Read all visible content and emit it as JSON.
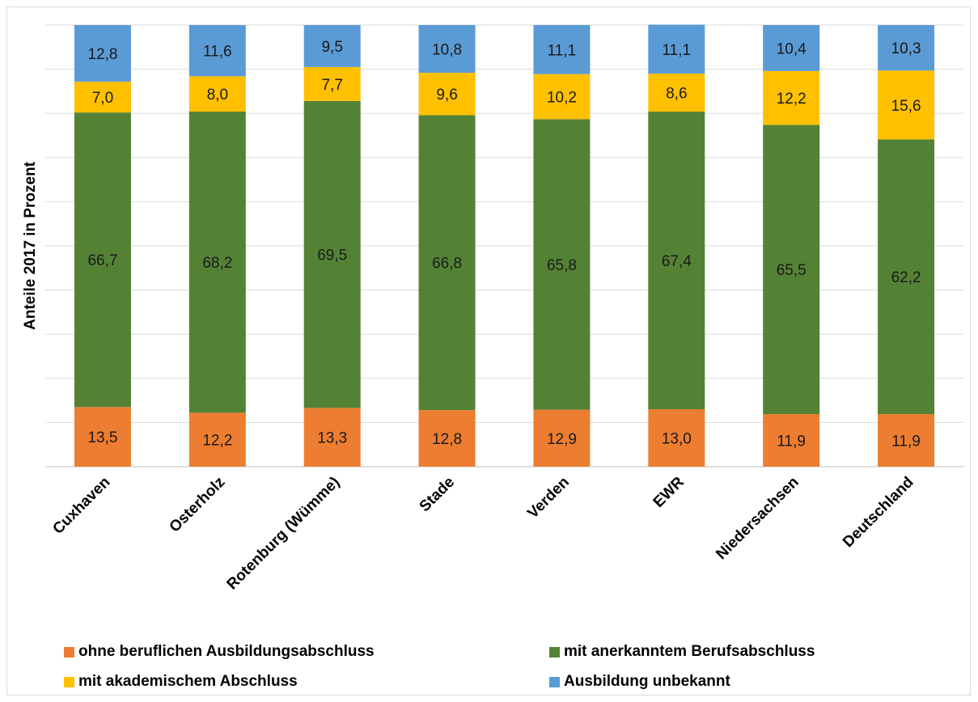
{
  "chart_data": {
    "type": "bar",
    "stacked": true,
    "title": "",
    "xlabel": "",
    "ylabel": "Anteile 2017 in Prozent",
    "ylim": [
      0,
      100
    ],
    "grid": true,
    "legend_position": "bottom",
    "categories": [
      "Cuxhaven",
      "Osterholz",
      "Rotenburg (Wümme)",
      "Stade",
      "Verden",
      "EWR",
      "Niedersachsen",
      "Deutschland"
    ],
    "series": [
      {
        "name": "ohne beruflichen Ausbildungsabschluss",
        "color": "#ed7d31",
        "values": [
          13.5,
          12.2,
          13.3,
          12.8,
          12.9,
          13.0,
          11.9,
          11.9
        ],
        "labels": [
          "13,5",
          "12,2",
          "13,3",
          "12,8",
          "12,9",
          "13,0",
          "11,9",
          "11,9"
        ]
      },
      {
        "name": "mit anerkanntem Berufsabschluss",
        "color": "#548235",
        "values": [
          66.7,
          68.2,
          69.5,
          66.8,
          65.8,
          67.4,
          65.5,
          62.2
        ],
        "labels": [
          "66,7",
          "68,2",
          "69,5",
          "66,8",
          "65,8",
          "67,4",
          "65,5",
          "62,2"
        ]
      },
      {
        "name": "mit akademischem Abschluss",
        "color": "#ffc000",
        "values": [
          7.0,
          8.0,
          7.7,
          9.6,
          10.2,
          8.6,
          12.2,
          15.6
        ],
        "labels": [
          "7,0",
          "8,0",
          "7,7",
          "9,6",
          "10,2",
          "8,6",
          "12,2",
          "15,6"
        ]
      },
      {
        "name": "Ausbildung unbekannt",
        "color": "#5b9bd5",
        "values": [
          12.8,
          11.6,
          9.5,
          10.8,
          11.1,
          11.1,
          10.4,
          10.3
        ],
        "labels": [
          "12,8",
          "11,6",
          "9,5",
          "10,8",
          "11,1",
          "11,1",
          "10,4",
          "10,3"
        ]
      }
    ]
  },
  "legend": [
    {
      "label": "ohne beruflichen Ausbildungsabschluss",
      "color": "#ed7d31"
    },
    {
      "label": "mit anerkanntem Berufsabschluss",
      "color": "#548235"
    },
    {
      "label": "mit akademischem Abschluss",
      "color": "#ffc000"
    },
    {
      "label": "Ausbildung unbekannt",
      "color": "#5b9bd5"
    }
  ]
}
